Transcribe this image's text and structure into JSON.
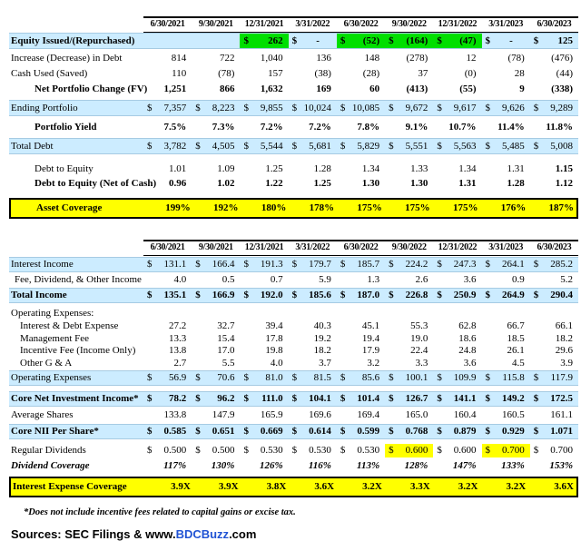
{
  "colors": {
    "row_blue": "#CCECFF",
    "border_blue": "#A6CBE3",
    "highlight_green": "#00DF00",
    "highlight_yellow": "#FFFF00",
    "link_blue": "#2053D4"
  },
  "columns": [
    "6/30/2021",
    "9/30/2021",
    "12/31/2021",
    "3/31/2022",
    "6/30/2022",
    "9/30/2022",
    "12/31/2022",
    "3/31/2023",
    "6/30/2023"
  ],
  "tables": [
    {
      "name": "portfolio-and-leverage",
      "rows": [
        {
          "label": "Equity Issued/(Repurchased)",
          "labelBold": true,
          "bold": true,
          "bg": "blue",
          "dollar": true,
          "gap": 2,
          "values": [
            "",
            "",
            "262",
            "-",
            "(52)",
            "(164)",
            "(47)",
            "-",
            "125"
          ],
          "cellBg": [
            null,
            null,
            "green",
            null,
            "green",
            "green",
            "green",
            null,
            null
          ]
        },
        {
          "label": "Increase (Decrease) in Debt",
          "gap": 2,
          "values": [
            "814",
            "722",
            "1,040",
            "136",
            "148",
            "(278)",
            "12",
            "(78)",
            "(476)"
          ]
        },
        {
          "label": "Cash Used (Saved)",
          "gap": 1,
          "values": [
            "110",
            "(78)",
            "157",
            "(38)",
            "(28)",
            "37",
            "(0)",
            "28",
            "(44)"
          ]
        },
        {
          "label": "Net Portfolio Change (FV)",
          "indent": 28,
          "labelBold": true,
          "bold": true,
          "gap": 1,
          "values": [
            "1,251",
            "866",
            "1,632",
            "169",
            "60",
            "(413)",
            "(55)",
            "9",
            "(338)"
          ]
        },
        {
          "label": "Ending Portfolio",
          "bg": "blue",
          "dollar": true,
          "gap": 4,
          "values": [
            "7,357",
            "8,223",
            "9,855",
            "10,024",
            "10,085",
            "9,672",
            "9,617",
            "9,626",
            "9,289"
          ]
        },
        {
          "label": "Portfolio Yield",
          "indent": 28,
          "labelBold": true,
          "bold": true,
          "gap": 4,
          "values": [
            "7.5%",
            "7.3%",
            "7.2%",
            "7.2%",
            "7.8%",
            "9.1%",
            "10.7%",
            "11.4%",
            "11.8%"
          ]
        },
        {
          "label": "Total Debt",
          "bg": "blue",
          "dollar": true,
          "gap": 4,
          "values": [
            "3,782",
            "4,505",
            "5,544",
            "5,681",
            "5,829",
            "5,551",
            "5,563",
            "5,485",
            "5,008"
          ]
        },
        {
          "label": "Debt to Equity",
          "indent": 28,
          "boldLast": true,
          "gap": 8,
          "values": [
            "1.01",
            "1.09",
            "1.25",
            "1.28",
            "1.34",
            "1.33",
            "1.34",
            "1.31",
            "1.15"
          ]
        },
        {
          "label": "Debt to Equity (Net of Cash)",
          "indent": 28,
          "labelBold": true,
          "bold": true,
          "values": [
            "0.96",
            "1.02",
            "1.22",
            "1.25",
            "1.30",
            "1.30",
            "1.31",
            "1.28",
            "1.12"
          ]
        },
        {
          "label": "Asset Coverage",
          "indent": 28,
          "labelBold": true,
          "bold": true,
          "bg": "yellow",
          "gap": 8,
          "values": [
            "199%",
            "192%",
            "180%",
            "178%",
            "175%",
            "175%",
            "175%",
            "176%",
            "187%"
          ]
        }
      ]
    },
    {
      "name": "income-statement",
      "rows": [
        {
          "label": "Interest Income",
          "bg": "blue",
          "dollar": true,
          "gap": 3,
          "values": [
            "131.1",
            "166.4",
            "191.3",
            "179.7",
            "185.7",
            "224.2",
            "247.3",
            "264.1",
            "285.2"
          ]
        },
        {
          "label": "Fee, Dividend, & Other Income",
          "indent": 6,
          "gap": 1,
          "values": [
            "4.0",
            "0.5",
            "0.7",
            "5.9",
            "1.3",
            "2.6",
            "3.6",
            "0.9",
            "5.2"
          ]
        },
        {
          "label": "Total Income",
          "labelBold": true,
          "bold": true,
          "bg": "blue",
          "dollar": true,
          "gap": 1,
          "values": [
            "135.1",
            "166.9",
            "192.0",
            "185.6",
            "187.0",
            "226.8",
            "250.9",
            "264.9",
            "290.4"
          ]
        },
        {
          "label": "Operating Expenses:",
          "gap": 4,
          "values": [
            "",
            "",
            "",
            "",
            "",
            "",
            "",
            "",
            ""
          ]
        },
        {
          "label": "Interest & Debt Expense",
          "indent": 12,
          "cls": "sub",
          "values": [
            "27.2",
            "32.7",
            "39.4",
            "40.3",
            "45.1",
            "55.3",
            "62.8",
            "66.7",
            "66.1"
          ]
        },
        {
          "label": "Management Fee",
          "indent": 12,
          "cls": "sub",
          "values": [
            "13.3",
            "15.4",
            "17.8",
            "19.2",
            "19.4",
            "19.0",
            "18.6",
            "18.5",
            "18.2"
          ]
        },
        {
          "label": "Incentive Fee (Income Only)",
          "indent": 12,
          "cls": "sub",
          "values": [
            "13.8",
            "17.0",
            "19.8",
            "18.2",
            "17.9",
            "22.4",
            "24.8",
            "26.1",
            "29.6"
          ]
        },
        {
          "label": "Other G & A",
          "indent": 12,
          "cls": "sub",
          "values": [
            "2.7",
            "5.5",
            "4.0",
            "3.7",
            "3.2",
            "3.3",
            "3.6",
            "4.5",
            "3.9"
          ]
        },
        {
          "label": "Operating Expenses",
          "bg": "blue",
          "dollar": true,
          "gap": 1,
          "values": [
            "56.9",
            "70.6",
            "81.0",
            "81.5",
            "85.6",
            "100.1",
            "109.9",
            "115.8",
            "117.9"
          ]
        },
        {
          "label": "Core Net Investment Income*",
          "labelBold": true,
          "bold": true,
          "bg": "blue",
          "dollar": true,
          "gap": 6,
          "values": [
            "78.2",
            "96.2",
            "111.0",
            "104.1",
            "101.4",
            "126.7",
            "141.1",
            "149.2",
            "172.5"
          ]
        },
        {
          "label": "Average Shares",
          "gap": 2,
          "values": [
            "133.8",
            "147.9",
            "165.9",
            "169.6",
            "169.4",
            "165.0",
            "160.4",
            "160.5",
            "161.1"
          ]
        },
        {
          "label": "Core NII Per Share*",
          "labelBold": true,
          "bold": true,
          "bg": "blue",
          "dollar": true,
          "gap": 2,
          "values": [
            "0.585",
            "0.651",
            "0.669",
            "0.614",
            "0.599",
            "0.768",
            "0.879",
            "0.929",
            "1.071"
          ]
        },
        {
          "label": "Regular Dividends",
          "dollar": true,
          "gap": 5,
          "values": [
            "0.500",
            "0.500",
            "0.530",
            "0.530",
            "0.530",
            "0.600",
            "0.600",
            "0.700",
            "0.700"
          ],
          "cellBg": [
            null,
            null,
            null,
            null,
            null,
            "yellow",
            null,
            "yellow",
            null
          ]
        },
        {
          "label": "Dividend Coverage",
          "labelBold": true,
          "labelItalic": true,
          "bold": true,
          "italic": true,
          "gap": 2,
          "values": [
            "117%",
            "130%",
            "126%",
            "116%",
            "113%",
            "128%",
            "147%",
            "133%",
            "153%"
          ]
        },
        {
          "label": "Interest Expense Coverage",
          "labelBold": true,
          "bold": true,
          "bg": "yellow",
          "gap": 4,
          "values": [
            "3.9X",
            "3.9X",
            "3.8X",
            "3.6X",
            "3.2X",
            "3.3X",
            "3.2X",
            "3.2X",
            "3.6X"
          ]
        }
      ]
    }
  ],
  "footnote": "*Does not include incentive fees related to capital gains or excise tax.",
  "sources": {
    "prefix": "Sources: SEC Filings & www.",
    "link": "BDCBuzz",
    "suffix": ".com"
  }
}
